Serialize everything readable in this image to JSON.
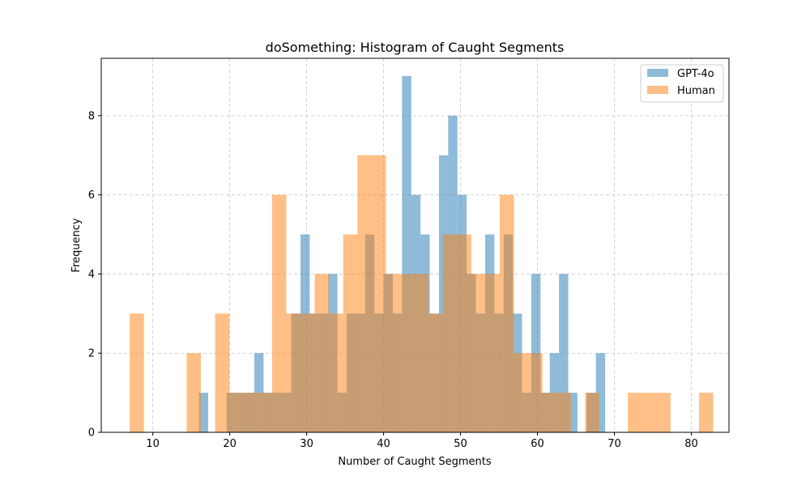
{
  "chart_data": {
    "type": "bar",
    "subtype": "overlaid-histogram",
    "title": "doSomething: Histogram of Caught Segments",
    "xlabel": "Number of Caught Segments",
    "ylabel": "Frequency",
    "xlim": [
      3.3,
      84.9
    ],
    "ylim": [
      0,
      9.45
    ],
    "xticks": [
      10,
      20,
      30,
      40,
      50,
      60,
      70,
      80
    ],
    "yticks": [
      0,
      2,
      4,
      6,
      8
    ],
    "grid": true,
    "legend_position": "top-right",
    "colors": {
      "GPT-4o": "#1f77b4",
      "Human": "#ff7f0e"
    },
    "alpha": 0.5,
    "series": [
      {
        "name": "GPT-4o",
        "bin_start": 16.0,
        "bin_width": 1.2,
        "counts": [
          1,
          0,
          0,
          1,
          1,
          1,
          2,
          1,
          1,
          1,
          3,
          5,
          3,
          3,
          4,
          1,
          3,
          3,
          5,
          3,
          4,
          3,
          9,
          6,
          5,
          3,
          7,
          8,
          6,
          4,
          3,
          5,
          3,
          5,
          3,
          1,
          4,
          1,
          2,
          4,
          1,
          0,
          1,
          2
        ]
      },
      {
        "name": "Human",
        "bin_start": 7.0,
        "bin_width": 1.85,
        "counts": [
          3,
          0,
          0,
          0,
          2,
          0,
          3,
          1,
          1,
          1,
          6,
          3,
          3,
          4,
          3,
          5,
          7,
          7,
          4,
          4,
          4,
          3,
          5,
          5,
          4,
          4,
          6,
          2,
          2,
          1,
          1,
          0,
          1,
          0,
          0,
          1,
          1,
          1,
          0,
          0,
          1
        ]
      }
    ]
  }
}
